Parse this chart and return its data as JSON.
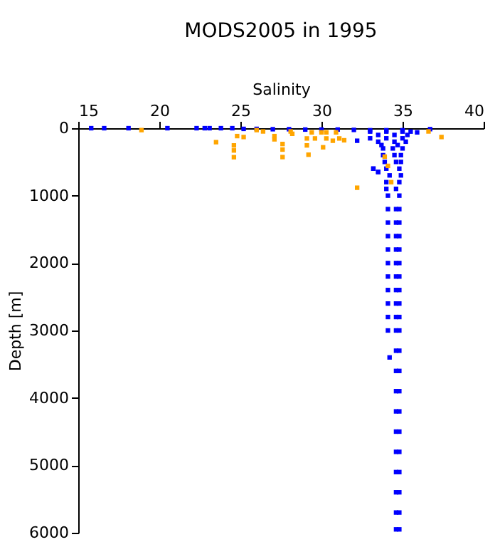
{
  "chart_data": {
    "type": "scatter",
    "title": "MODS2005 in 1995",
    "xlabel": "Salinity",
    "ylabel": "Depth [m]",
    "xlim": [
      15,
      40
    ],
    "xticks": [
      15,
      20,
      25,
      30,
      35,
      40
    ],
    "ylim": [
      6000,
      0
    ],
    "yticks": [
      0,
      1000,
      2000,
      3000,
      4000,
      5000,
      6000
    ],
    "grid": false,
    "legend": false,
    "marker": "square",
    "series": [
      {
        "color": "#0000ff",
        "x": [
          15.8,
          16.6,
          18.1,
          20.5,
          22.3,
          22.8,
          23.1,
          23.8,
          24.5,
          25.2,
          26,
          27,
          28,
          29,
          30,
          31,
          32,
          33,
          34,
          35,
          35.9,
          36.7,
          32.2,
          33.2,
          33.5,
          33,
          34,
          35,
          35.5,
          33.5,
          34.5,
          35.3,
          33,
          34,
          35,
          33.5,
          34.5,
          35.2,
          33.7,
          34.7,
          33.8,
          34.4,
          35,
          33.8,
          34.5,
          34.9,
          33.9,
          34.6,
          34.9,
          33.2,
          34,
          34.8,
          33.5,
          34.2,
          34.9,
          34,
          34.8,
          34,
          34.6,
          34.1,
          34.8,
          34.1,
          34.6,
          34.8,
          34.1,
          34.6,
          34.8,
          34.1,
          34.6,
          34.8,
          34.1,
          34.6,
          34.8,
          34.1,
          34.6,
          34.8,
          34.1,
          34.6,
          34.8,
          34.1,
          34.6,
          34.8,
          34.1,
          34.6,
          34.8,
          34.1,
          34.6,
          34.8,
          34.1,
          34.6,
          34.8,
          34.2,
          34.6,
          34.8,
          34.6,
          34.8,
          34.6,
          34.8,
          34.6,
          34.8,
          34.6,
          34.8,
          34.6,
          34.8,
          34.6,
          34.8,
          34.6,
          34.8,
          34.6,
          34.8,
          34.6,
          34.8
        ],
        "values": [
          0,
          0,
          0,
          0,
          0,
          0,
          0,
          0,
          0,
          10,
          10,
          15,
          15,
          20,
          20,
          20,
          25,
          30,
          30,
          30,
          62,
          14,
          186,
          600,
          648,
          50,
          50,
          50,
          50,
          100,
          100,
          100,
          150,
          150,
          150,
          200,
          200,
          200,
          250,
          250,
          300,
          300,
          300,
          400,
          400,
          400,
          500,
          500,
          500,
          600,
          600,
          600,
          650,
          700,
          700,
          800,
          800,
          900,
          900,
          1000,
          1000,
          1200,
          1200,
          1200,
          1400,
          1400,
          1400,
          1600,
          1600,
          1600,
          1800,
          1800,
          1800,
          2000,
          2000,
          2000,
          2200,
          2200,
          2200,
          2400,
          2400,
          2400,
          2600,
          2600,
          2600,
          2800,
          2800,
          2800,
          3000,
          3000,
          3000,
          3400,
          3300,
          3300,
          3600,
          3600,
          3900,
          3900,
          4200,
          4200,
          4500,
          4500,
          4800,
          4800,
          5100,
          5100,
          5400,
          5400,
          5700,
          5700,
          5950,
          5950
        ]
      },
      {
        "color": "#ffa500",
        "x": [
          18.9,
          23.5,
          24.6,
          24.6,
          24.6,
          24.8,
          25.2,
          26.0,
          26.4,
          27.1,
          27.1,
          27.6,
          27.6,
          27.6,
          28.1,
          28.2,
          29.1,
          29.2,
          29.1,
          29.4,
          29.6,
          30.0,
          30.1,
          30.3,
          30.3,
          30.7,
          30.9,
          31.1,
          31.4,
          32.2,
          33.9,
          34.1,
          34.3,
          36.6,
          37.4
        ],
        "values": [
          28,
          207,
          255,
          330,
          430,
          117,
          131,
          28,
          48,
          117,
          165,
          234,
          317,
          428,
          48,
          83,
          152,
          393,
          255,
          62,
          152,
          62,
          283,
          62,
          152,
          186,
          62,
          152,
          179,
          883,
          421,
          559,
          800,
          48,
          131
        ]
      }
    ]
  }
}
